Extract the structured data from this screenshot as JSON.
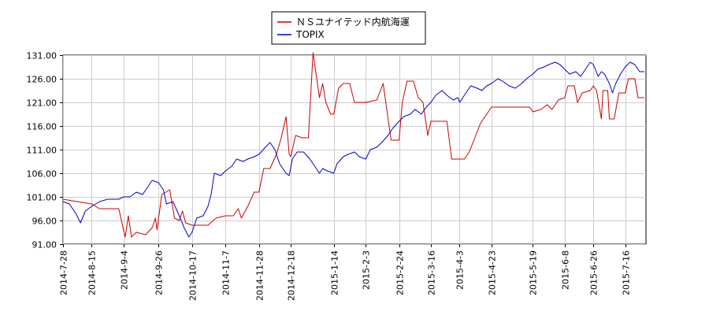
{
  "chart_data": {
    "type": "line",
    "title": "",
    "xlabel": "",
    "ylabel": "",
    "ylim": [
      91,
      131
    ],
    "grid": true,
    "legend_position": "top-center",
    "y_ticks": [
      "91.00",
      "96.00",
      "101.00",
      "106.00",
      "111.00",
      "116.00",
      "121.00",
      "126.00",
      "131.00"
    ],
    "x_ticks": [
      "2014-7-28",
      "2014-8-15",
      "2014-9-4",
      "2014-9-26",
      "2014-10-17",
      "2014-11-7",
      "2014-11-28",
      "2014-12-18",
      "2015-1-14",
      "2015-2-3",
      "2015-2-24",
      "2015-3-16",
      "2015-4-3",
      "2015-4-23",
      "2015-5-19",
      "2015-6-8",
      "2015-6-26",
      "2015-7-16"
    ],
    "x_start": "2014-07-28",
    "x_end": "2015-07-29",
    "series": [
      {
        "name": "ＮＳユナイテッド内航海運",
        "color": "#cc0000",
        "points": [
          [
            "2014-07-28",
            100.5
          ],
          [
            "2014-08-06",
            100.0
          ],
          [
            "2014-08-15",
            99.5
          ],
          [
            "2014-08-20",
            98.5
          ],
          [
            "2014-09-01",
            98.5
          ],
          [
            "2014-09-04",
            94.0
          ],
          [
            "2014-09-05",
            92.5
          ],
          [
            "2014-09-07",
            97.0
          ],
          [
            "2014-09-09",
            92.5
          ],
          [
            "2014-09-12",
            93.5
          ],
          [
            "2014-09-18",
            93.0
          ],
          [
            "2014-09-22",
            94.5
          ],
          [
            "2014-09-24",
            96.5
          ],
          [
            "2014-09-25",
            94.0
          ],
          [
            "2014-09-28",
            101.5
          ],
          [
            "2014-10-03",
            102.5
          ],
          [
            "2014-10-06",
            96.5
          ],
          [
            "2014-10-09",
            96.0
          ],
          [
            "2014-10-11",
            98.0
          ],
          [
            "2014-10-13",
            95.5
          ],
          [
            "2014-10-17",
            95.0
          ],
          [
            "2014-10-27",
            95.0
          ],
          [
            "2014-11-01",
            96.5
          ],
          [
            "2014-11-07",
            97.0
          ],
          [
            "2014-11-12",
            97.0
          ],
          [
            "2014-11-15",
            98.5
          ],
          [
            "2014-11-17",
            96.5
          ],
          [
            "2014-11-21",
            99.0
          ],
          [
            "2014-11-25",
            102.0
          ],
          [
            "2014-11-28",
            102.0
          ],
          [
            "2014-12-01",
            107.0
          ],
          [
            "2014-12-05",
            107.0
          ],
          [
            "2014-12-09",
            110.0
          ],
          [
            "2014-12-12",
            113.5
          ],
          [
            "2014-12-15",
            118.0
          ],
          [
            "2014-12-17",
            110.0
          ],
          [
            "2014-12-18",
            109.5
          ],
          [
            "2014-12-21",
            114.0
          ],
          [
            "2014-12-25",
            113.5
          ],
          [
            "2014-12-29",
            113.5
          ],
          [
            "2015-01-01",
            131.5
          ],
          [
            "2015-01-05",
            122.0
          ],
          [
            "2015-01-07",
            125.0
          ],
          [
            "2015-01-09",
            121.0
          ],
          [
            "2015-01-12",
            118.5
          ],
          [
            "2015-01-14",
            118.5
          ],
          [
            "2015-01-17",
            124.0
          ],
          [
            "2015-01-20",
            125.0
          ],
          [
            "2015-01-24",
            125.0
          ],
          [
            "2015-01-27",
            121.0
          ],
          [
            "2015-02-03",
            121.0
          ],
          [
            "2015-02-10",
            121.5
          ],
          [
            "2015-02-14",
            125.0
          ],
          [
            "2015-02-19",
            113.0
          ],
          [
            "2015-02-21",
            113.0
          ],
          [
            "2015-02-24",
            113.0
          ],
          [
            "2015-02-26",
            121.0
          ],
          [
            "2015-03-01",
            125.5
          ],
          [
            "2015-03-05",
            125.5
          ],
          [
            "2015-03-08",
            122.0
          ],
          [
            "2015-03-11",
            121.0
          ],
          [
            "2015-03-14",
            114.0
          ],
          [
            "2015-03-16",
            117.0
          ],
          [
            "2015-03-20",
            117.0
          ],
          [
            "2015-03-26",
            117.0
          ],
          [
            "2015-03-29",
            109.0
          ],
          [
            "2015-04-03",
            109.0
          ],
          [
            "2015-04-06",
            109.0
          ],
          [
            "2015-04-09",
            110.5
          ],
          [
            "2015-04-12",
            113.0
          ],
          [
            "2015-04-16",
            116.5
          ],
          [
            "2015-04-20",
            118.5
          ],
          [
            "2015-04-23",
            120.0
          ],
          [
            "2015-05-04",
            120.0
          ],
          [
            "2015-05-12",
            120.0
          ],
          [
            "2015-05-17",
            120.0
          ],
          [
            "2015-05-19",
            119.0
          ],
          [
            "2015-05-24",
            119.5
          ],
          [
            "2015-05-28",
            120.5
          ],
          [
            "2015-05-31",
            119.5
          ],
          [
            "2015-06-04",
            121.5
          ],
          [
            "2015-06-08",
            122.0
          ],
          [
            "2015-06-10",
            124.5
          ],
          [
            "2015-06-14",
            124.5
          ],
          [
            "2015-06-16",
            121.0
          ],
          [
            "2015-06-19",
            123.0
          ],
          [
            "2015-06-24",
            123.5
          ],
          [
            "2015-06-26",
            124.5
          ],
          [
            "2015-06-28",
            123.5
          ],
          [
            "2015-07-01",
            117.5
          ],
          [
            "2015-07-02",
            123.5
          ],
          [
            "2015-07-05",
            123.5
          ],
          [
            "2015-07-06",
            117.5
          ],
          [
            "2015-07-09",
            117.5
          ],
          [
            "2015-07-12",
            123.0
          ],
          [
            "2015-07-16",
            123.0
          ],
          [
            "2015-07-18",
            126.0
          ],
          [
            "2015-07-22",
            126.0
          ],
          [
            "2015-07-24",
            122.0
          ],
          [
            "2015-07-28",
            122.0
          ]
        ]
      },
      {
        "name": "TOPIX",
        "color": "#0000cc",
        "points": [
          [
            "2014-07-28",
            100.0
          ],
          [
            "2014-08-01",
            99.5
          ],
          [
            "2014-08-05",
            97.5
          ],
          [
            "2014-08-08",
            95.5
          ],
          [
            "2014-08-11",
            98.0
          ],
          [
            "2014-08-15",
            99.0
          ],
          [
            "2014-08-20",
            100.0
          ],
          [
            "2014-08-25",
            100.5
          ],
          [
            "2014-09-01",
            100.5
          ],
          [
            "2014-09-04",
            101.0
          ],
          [
            "2014-09-08",
            101.0
          ],
          [
            "2014-09-12",
            102.0
          ],
          [
            "2014-09-16",
            101.5
          ],
          [
            "2014-09-20",
            103.5
          ],
          [
            "2014-09-22",
            104.5
          ],
          [
            "2014-09-26",
            104.0
          ],
          [
            "2014-09-29",
            102.5
          ],
          [
            "2014-10-01",
            99.5
          ],
          [
            "2014-10-05",
            100.0
          ],
          [
            "2014-10-09",
            97.0
          ],
          [
            "2014-10-12",
            94.5
          ],
          [
            "2014-10-15",
            92.5
          ],
          [
            "2014-10-17",
            93.5
          ],
          [
            "2014-10-20",
            96.5
          ],
          [
            "2014-10-24",
            97.0
          ],
          [
            "2014-10-27",
            99.0
          ],
          [
            "2014-10-29",
            101.5
          ],
          [
            "2014-10-31",
            106.0
          ],
          [
            "2014-11-04",
            105.5
          ],
          [
            "2014-11-07",
            106.5
          ],
          [
            "2014-11-11",
            107.5
          ],
          [
            "2014-11-14",
            109.0
          ],
          [
            "2014-11-18",
            108.5
          ],
          [
            "2014-11-21",
            109.0
          ],
          [
            "2014-11-25",
            109.5
          ],
          [
            "2014-11-28",
            110.0
          ],
          [
            "2014-12-02",
            111.5
          ],
          [
            "2014-12-05",
            112.5
          ],
          [
            "2014-12-08",
            111.0
          ],
          [
            "2014-12-11",
            108.0
          ],
          [
            "2014-12-15",
            106.0
          ],
          [
            "2014-12-17",
            105.5
          ],
          [
            "2014-12-19",
            109.0
          ],
          [
            "2014-12-22",
            110.5
          ],
          [
            "2014-12-26",
            110.5
          ],
          [
            "2014-12-30",
            109.0
          ],
          [
            "2015-01-05",
            106.0
          ],
          [
            "2015-01-07",
            107.0
          ],
          [
            "2015-01-10",
            106.5
          ],
          [
            "2015-01-14",
            106.0
          ],
          [
            "2015-01-16",
            108.0
          ],
          [
            "2015-01-20",
            109.5
          ],
          [
            "2015-01-23",
            110.0
          ],
          [
            "2015-01-27",
            110.5
          ],
          [
            "2015-01-30",
            109.5
          ],
          [
            "2015-02-03",
            109.0
          ],
          [
            "2015-02-06",
            111.0
          ],
          [
            "2015-02-10",
            111.5
          ],
          [
            "2015-02-13",
            112.5
          ],
          [
            "2015-02-17",
            114.0
          ],
          [
            "2015-02-20",
            115.5
          ],
          [
            "2015-02-24",
            117.0
          ],
          [
            "2015-02-27",
            118.0
          ],
          [
            "2015-03-03",
            118.5
          ],
          [
            "2015-03-06",
            119.5
          ],
          [
            "2015-03-10",
            118.5
          ],
          [
            "2015-03-13",
            120.0
          ],
          [
            "2015-03-16",
            121.0
          ],
          [
            "2015-03-19",
            122.5
          ],
          [
            "2015-03-23",
            123.5
          ],
          [
            "2015-03-26",
            122.5
          ],
          [
            "2015-03-30",
            121.5
          ],
          [
            "2015-04-02",
            122.0
          ],
          [
            "2015-04-03",
            121.0
          ],
          [
            "2015-04-07",
            123.0
          ],
          [
            "2015-04-10",
            124.5
          ],
          [
            "2015-04-14",
            124.0
          ],
          [
            "2015-04-17",
            123.5
          ],
          [
            "2015-04-20",
            124.5
          ],
          [
            "2015-04-23",
            125.0
          ],
          [
            "2015-04-27",
            126.0
          ],
          [
            "2015-04-30",
            125.5
          ],
          [
            "2015-05-04",
            124.5
          ],
          [
            "2015-05-08",
            124.0
          ],
          [
            "2015-05-12",
            125.0
          ],
          [
            "2015-05-15",
            126.0
          ],
          [
            "2015-05-19",
            127.0
          ],
          [
            "2015-05-22",
            128.0
          ],
          [
            "2015-05-26",
            128.5
          ],
          [
            "2015-05-29",
            129.0
          ],
          [
            "2015-06-02",
            129.5
          ],
          [
            "2015-06-05",
            129.0
          ],
          [
            "2015-06-08",
            128.0
          ],
          [
            "2015-06-11",
            127.0
          ],
          [
            "2015-06-15",
            127.5
          ],
          [
            "2015-06-18",
            126.5
          ],
          [
            "2015-06-22",
            128.5
          ],
          [
            "2015-06-24",
            129.5
          ],
          [
            "2015-06-26",
            129.0
          ],
          [
            "2015-06-29",
            126.5
          ],
          [
            "2015-07-01",
            127.5
          ],
          [
            "2015-07-03",
            127.0
          ],
          [
            "2015-07-06",
            125.0
          ],
          [
            "2015-07-08",
            123.0
          ],
          [
            "2015-07-10",
            125.0
          ],
          [
            "2015-07-13",
            127.0
          ],
          [
            "2015-07-16",
            128.5
          ],
          [
            "2015-07-19",
            129.5
          ],
          [
            "2015-07-22",
            129.0
          ],
          [
            "2015-07-25",
            127.5
          ],
          [
            "2015-07-28",
            127.5
          ]
        ]
      }
    ]
  }
}
